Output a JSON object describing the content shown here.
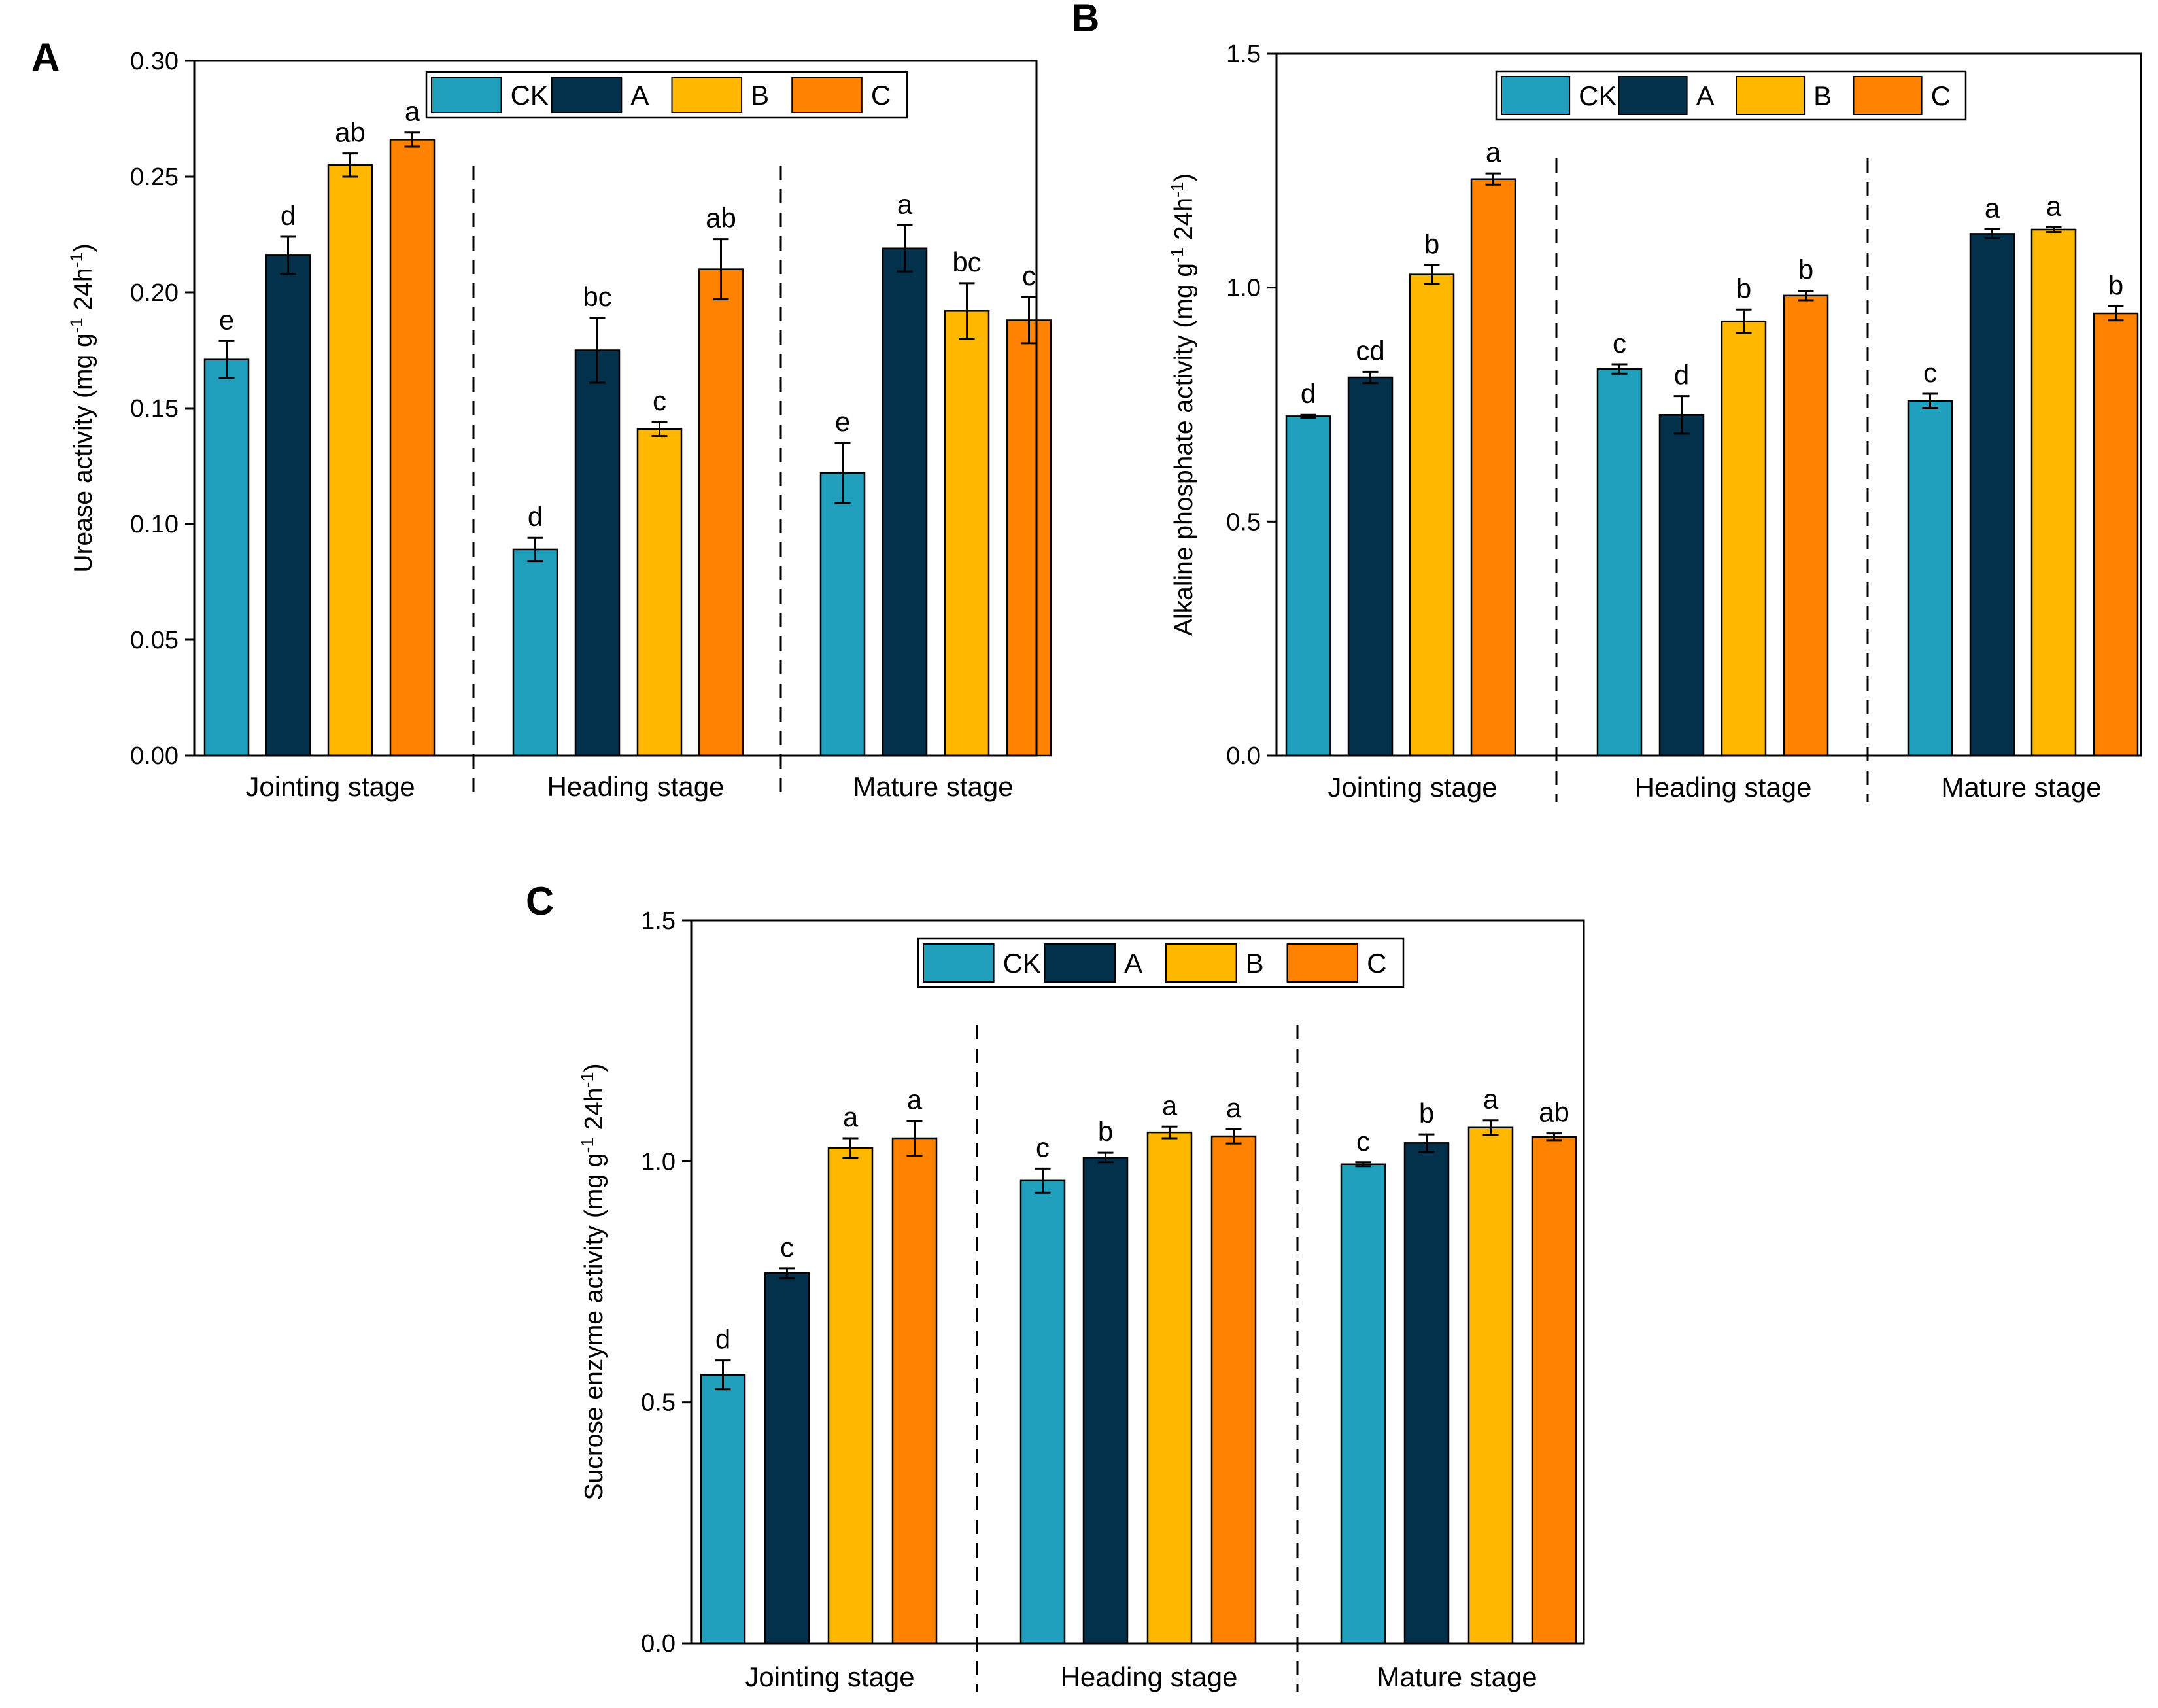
{
  "colors": {
    "CK": "#21A0BE",
    "A": "#03304A",
    "B": "#FFB700",
    "C": "#FF8200"
  },
  "chart_data": [
    {
      "type": "bar",
      "panel": "A",
      "ylabel": "Urease activity  (mg g-1 24h-1)",
      "ylabel_parts": {
        "pre": "Urease activity  (mg g",
        "sup1": "-1",
        "mid": " 24h",
        "sup2": "-1",
        "post": ")"
      },
      "ylim": [
        0,
        0.3
      ],
      "yticks": [
        "0.00",
        "0.05",
        "0.10",
        "0.15",
        "0.20",
        "0.25",
        "0.30"
      ],
      "ytick_values": [
        0,
        0.05,
        0.1,
        0.15,
        0.2,
        0.25,
        0.3
      ],
      "categories": [
        "Jointing stage",
        "Heading stage",
        "Mature stage"
      ],
      "legend": [
        "CK",
        "A",
        "B",
        "C"
      ],
      "legend_position": "top-center",
      "series": [
        {
          "name": "CK",
          "values": [
            0.171,
            0.089,
            0.122
          ],
          "errors": [
            0.008,
            0.005,
            0.013
          ],
          "letters": [
            "e",
            "d",
            "e"
          ]
        },
        {
          "name": "A",
          "values": [
            0.216,
            0.175,
            0.219
          ],
          "errors": [
            0.008,
            0.014,
            0.01
          ],
          "letters": [
            "d",
            "bc",
            "a"
          ]
        },
        {
          "name": "B",
          "values": [
            0.255,
            0.141,
            0.192
          ],
          "errors": [
            0.005,
            0.003,
            0.012
          ],
          "letters": [
            "ab",
            "c",
            "bc"
          ]
        },
        {
          "name": "C",
          "values": [
            0.266,
            0.21,
            0.188
          ],
          "errors": [
            0.003,
            0.013,
            0.01
          ],
          "letters": [
            "a",
            "ab",
            "c"
          ]
        }
      ]
    },
    {
      "type": "bar",
      "panel": "B",
      "ylabel": "Alkaline phosphate activity  (mg g-1 24h-1)",
      "ylabel_parts": {
        "pre": "Alkaline phosphate activity  (mg g",
        "sup1": "-1",
        "mid": " 24h",
        "sup2": "-1",
        "post": ")"
      },
      "ylim": [
        0,
        1.5
      ],
      "yticks": [
        "0.0",
        "0.5",
        "1.0",
        "1.5"
      ],
      "ytick_values": [
        0,
        0.5,
        1.0,
        1.5
      ],
      "categories": [
        "Jointing stage",
        "Heading stage",
        "Mature stage"
      ],
      "legend": [
        "CK",
        "A",
        "B",
        "C"
      ],
      "legend_position": "top-center",
      "series": [
        {
          "name": "CK",
          "values": [
            0.725,
            0.826,
            0.758
          ],
          "errors": [
            0.003,
            0.01,
            0.015
          ],
          "letters": [
            "d",
            "c",
            "c"
          ]
        },
        {
          "name": "A",
          "values": [
            0.808,
            0.728,
            1.115
          ],
          "errors": [
            0.012,
            0.04,
            0.01
          ],
          "letters": [
            "cd",
            "d",
            "a"
          ]
        },
        {
          "name": "B",
          "values": [
            1.028,
            0.928,
            1.124
          ],
          "errors": [
            0.02,
            0.025,
            0.005
          ],
          "letters": [
            "b",
            "b",
            "a"
          ]
        },
        {
          "name": "C",
          "values": [
            1.232,
            0.983,
            0.945
          ],
          "errors": [
            0.012,
            0.01,
            0.015
          ],
          "letters": [
            "a",
            "b",
            "b"
          ]
        }
      ]
    },
    {
      "type": "bar",
      "panel": "C",
      "ylabel": "Sucrose enzyme activity  (mg g-1 24h-1)",
      "ylabel_parts": {
        "pre": "Sucrose enzyme activity  (mg g",
        "sup1": "-1",
        "mid": " 24h",
        "sup2": "-1",
        "post": ")"
      },
      "ylim": [
        0,
        1.5
      ],
      "yticks": [
        "0.0",
        "0.5",
        "1.0",
        "1.5"
      ],
      "ytick_values": [
        0,
        0.5,
        1.0,
        1.5
      ],
      "categories": [
        "Jointing stage",
        "Heading stage",
        "Mature stage"
      ],
      "legend": [
        "CK",
        "A",
        "B",
        "C"
      ],
      "legend_position": "top-center",
      "series": [
        {
          "name": "CK",
          "values": [
            0.557,
            0.96,
            0.994
          ],
          "errors": [
            0.03,
            0.025,
            0.004
          ],
          "letters": [
            "d",
            "c",
            "c"
          ]
        },
        {
          "name": "A",
          "values": [
            0.768,
            1.008,
            1.038
          ],
          "errors": [
            0.01,
            0.01,
            0.018
          ],
          "letters": [
            "c",
            "b",
            "b"
          ]
        },
        {
          "name": "B",
          "values": [
            1.028,
            1.06,
            1.07
          ],
          "errors": [
            0.02,
            0.012,
            0.015
          ],
          "letters": [
            "a",
            "a",
            "a"
          ]
        },
        {
          "name": "C",
          "values": [
            1.048,
            1.052,
            1.051
          ],
          "errors": [
            0.036,
            0.015,
            0.007
          ],
          "letters": [
            "a",
            "a",
            "ab"
          ]
        }
      ]
    }
  ]
}
